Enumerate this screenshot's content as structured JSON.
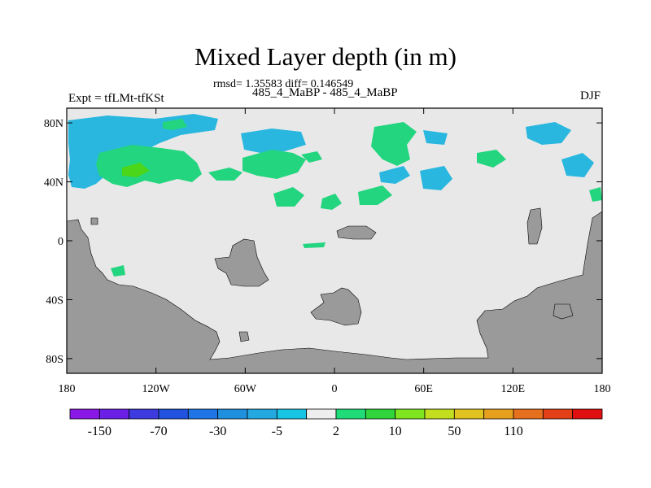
{
  "title": "Mixed Layer depth (in m)",
  "stats": "rmsd= 1.35583 diff= 0.146549",
  "subtitle": "485_4_MaBP - 485_4_MaBP",
  "experiment": "Expt = tfLMt-tfKSt",
  "season": "DJF",
  "map": {
    "lat_range": [
      -90,
      90
    ],
    "lon_range": [
      -180,
      180
    ],
    "y_ticks": [
      {
        "lat": 80,
        "label": "80N"
      },
      {
        "lat": 40,
        "label": "40N"
      },
      {
        "lat": 0,
        "label": "0"
      },
      {
        "lat": -40,
        "label": "40S"
      },
      {
        "lat": -80,
        "label": "80S"
      }
    ],
    "x_ticks": [
      {
        "lon": -180,
        "label": "180"
      },
      {
        "lon": -120,
        "label": "120W"
      },
      {
        "lon": -60,
        "label": "60W"
      },
      {
        "lon": 0,
        "label": "0"
      },
      {
        "lon": 60,
        "label": "60E"
      },
      {
        "lon": 120,
        "label": "120E"
      },
      {
        "lon": 180,
        "label": "180"
      }
    ],
    "colors": {
      "background": "#e8e8e8",
      "land": "#9a9a9a",
      "neg_small": "#29b7df",
      "pos_small": "#23d57f",
      "pos_medium": "#4bd619"
    }
  },
  "colorbar": {
    "colors": [
      "#8a18e6",
      "#6a1ee6",
      "#3d3be0",
      "#2253e0",
      "#1f74e6",
      "#1f90dd",
      "#24a8e0",
      "#18c4e4",
      "#eeeeee",
      "#1fdc78",
      "#2fd53a",
      "#7ee51e",
      "#c2de1e",
      "#e2c21e",
      "#e6a01e",
      "#e6701e",
      "#e44018",
      "#e01010"
    ],
    "labels": [
      {
        "boundary": 1,
        "text": "-150"
      },
      {
        "boundary": 3,
        "text": "-70"
      },
      {
        "boundary": 5,
        "text": "-30"
      },
      {
        "boundary": 7,
        "text": "-5"
      },
      {
        "boundary": 9,
        "text": "2"
      },
      {
        "boundary": 11,
        "text": "10"
      },
      {
        "boundary": 13,
        "text": "50"
      },
      {
        "boundary": 15,
        "text": "110"
      }
    ]
  }
}
